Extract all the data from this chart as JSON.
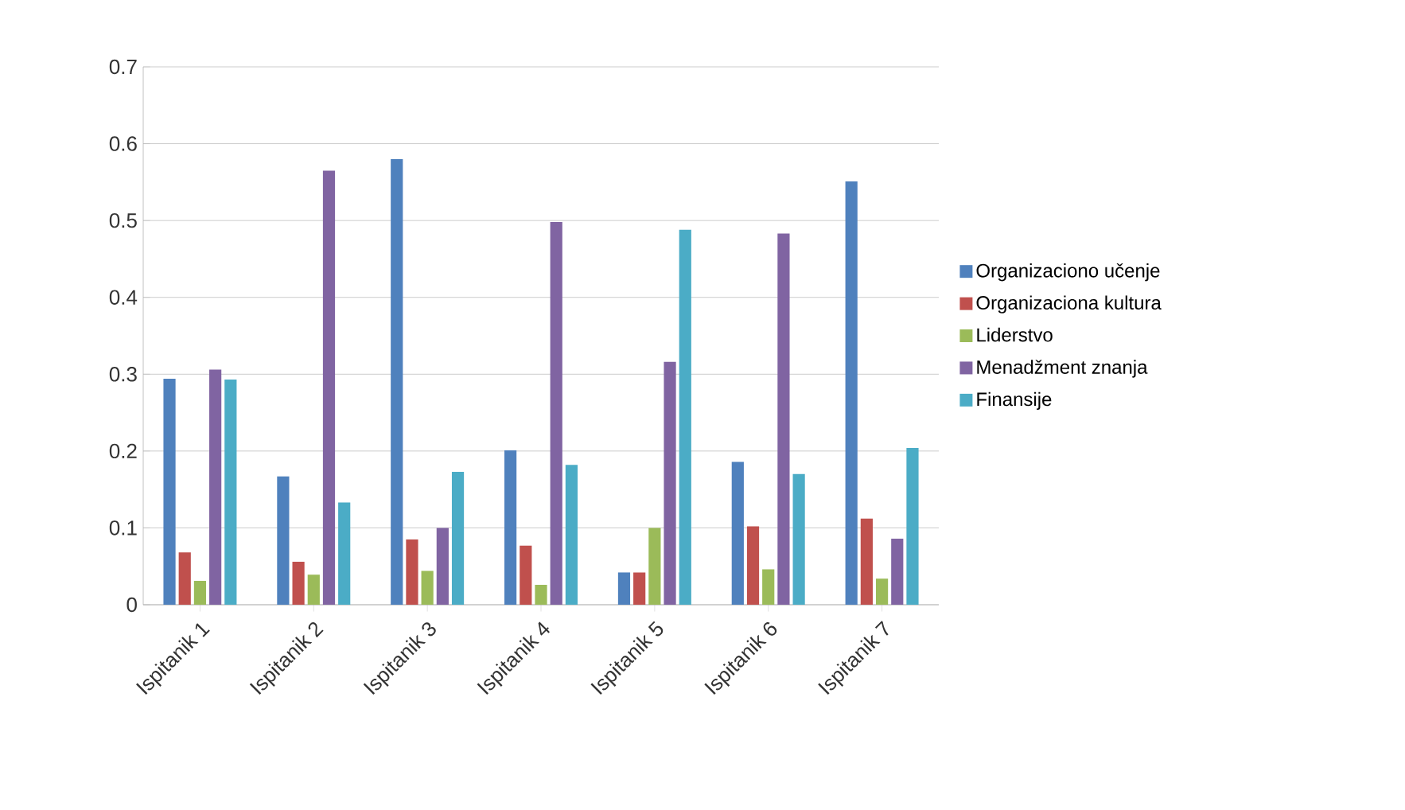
{
  "chart_data": {
    "type": "bar",
    "categories": [
      "Ispitanik 1",
      "Ispitanik 2",
      "Ispitanik 3",
      "Ispitanik 4",
      "Ispitanik 5",
      "Ispitanik 6",
      "Ispitanik 7"
    ],
    "series": [
      {
        "name": "Organizaciono učenje",
        "color": "#4f81bd",
        "values": [
          0.294,
          0.167,
          0.58,
          0.201,
          0.042,
          0.186,
          0.551
        ]
      },
      {
        "name": "Organizaciona kultura",
        "color": "#c0504d",
        "values": [
          0.068,
          0.056,
          0.085,
          0.077,
          0.042,
          0.102,
          0.112
        ]
      },
      {
        "name": "Liderstvo",
        "color": "#9bbb59",
        "values": [
          0.031,
          0.039,
          0.044,
          0.026,
          0.1,
          0.046,
          0.034
        ]
      },
      {
        "name": "Menadžment znanja",
        "color": "#8064a2",
        "values": [
          0.306,
          0.565,
          0.1,
          0.498,
          0.316,
          0.483,
          0.086
        ]
      },
      {
        "name": "Finansije",
        "color": "#4bacc6",
        "values": [
          0.293,
          0.133,
          0.173,
          0.182,
          0.488,
          0.17,
          0.204
        ]
      }
    ],
    "ylim": [
      0,
      0.7
    ],
    "yticks": [
      0,
      0.1,
      0.2,
      0.3,
      0.4,
      0.5,
      0.6,
      0.7
    ],
    "grid": "y",
    "legend": "right"
  }
}
